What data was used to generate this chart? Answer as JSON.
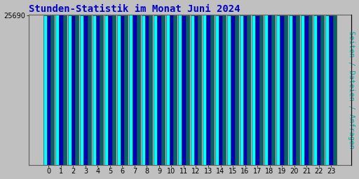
{
  "title": "Stunden-Statistik im Monat Juni 2024",
  "title_color": "#0000cc",
  "title_fontsize": 10,
  "ylabel_right": "Seiten / Dateien / Anfragen",
  "ylabel_color": "#00aaaa",
  "ylabel_fontsize": 7.5,
  "categories": [
    0,
    1,
    2,
    3,
    4,
    5,
    6,
    7,
    8,
    9,
    10,
    11,
    12,
    13,
    14,
    15,
    16,
    17,
    18,
    19,
    20,
    21,
    22,
    23
  ],
  "values_seiten": [
    25690,
    25720,
    25700,
    25700,
    25695,
    25700,
    25705,
    25740,
    25705,
    25705,
    25720,
    25710,
    25705,
    25760,
    25670,
    25680,
    25685,
    25680,
    25730,
    25700,
    25700,
    25700,
    25700,
    25685
  ],
  "values_dateien": [
    25680,
    25710,
    25690,
    25690,
    25685,
    25690,
    25695,
    25730,
    25695,
    25695,
    25710,
    25700,
    25695,
    25750,
    25660,
    25670,
    25675,
    25670,
    25720,
    25690,
    25690,
    25690,
    25690,
    25675
  ],
  "values_anfragen": [
    25670,
    25700,
    25680,
    25680,
    25675,
    25680,
    25685,
    25720,
    25685,
    25685,
    25700,
    25690,
    25685,
    25740,
    25650,
    25660,
    25665,
    25660,
    25710,
    25680,
    25680,
    25680,
    25680,
    25665
  ],
  "color_seiten": "#00ffff",
  "color_dateien": "#0000bb",
  "color_anfragen": "#006666",
  "bar_edge_color": "#303030",
  "background_color": "#c0c0c0",
  "plot_bg_color": "#c0c0c0",
  "ymin": 0,
  "ymax": 25800,
  "ytick_value": 25690,
  "ytick_label": "25690",
  "ytick_fontsize": 7,
  "xtick_fontsize": 7
}
